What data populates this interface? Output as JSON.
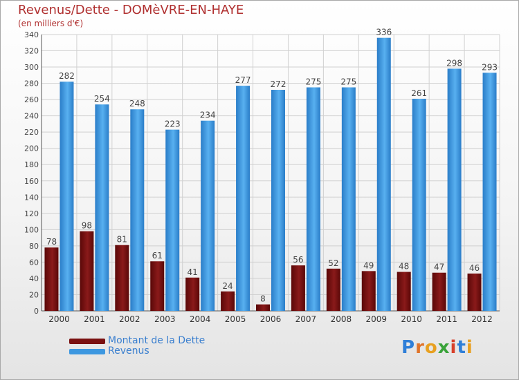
{
  "chart_data": {
    "type": "bar",
    "title": "Revenus/Dette - DOMèVRE-EN-HAYE",
    "subtitle": "(en milliers d'€)",
    "categories": [
      "2000",
      "2001",
      "2002",
      "2003",
      "2004",
      "2005",
      "2006",
      "2007",
      "2008",
      "2009",
      "2010",
      "2011",
      "2012"
    ],
    "series": [
      {
        "name": "Montant de la Dette",
        "color": "#7a1010",
        "values": [
          78,
          98,
          81,
          61,
          41,
          24,
          8,
          56,
          52,
          49,
          48,
          47,
          46
        ]
      },
      {
        "name": "Revenus",
        "color": "#3c97e0",
        "values": [
          282,
          254,
          248,
          223,
          234,
          277,
          272,
          275,
          275,
          336,
          261,
          298,
          293
        ]
      }
    ],
    "ylim": [
      0,
      340
    ],
    "yticks": [
      0,
      20,
      40,
      60,
      80,
      100,
      120,
      140,
      160,
      180,
      200,
      220,
      240,
      260,
      280,
      300,
      320,
      340
    ],
    "grid": true,
    "legend_position": "bottom-left",
    "xlabel": "",
    "ylabel": ""
  },
  "logo": {
    "text": "Proxiti",
    "letter_colors": [
      "#2f7fd8",
      "#e0742a",
      "#e8a020",
      "#3aa33a",
      "#d8402a",
      "#2f7fd8",
      "#e8a020"
    ]
  }
}
